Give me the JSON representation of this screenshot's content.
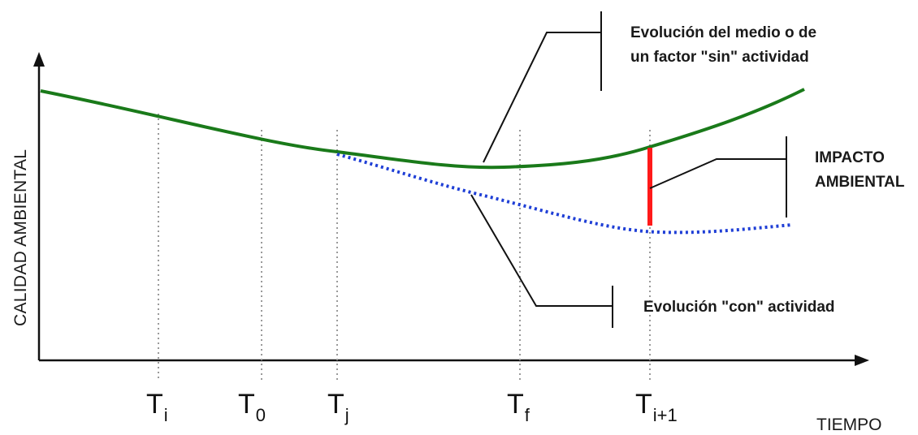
{
  "axes": {
    "ylabel": "CALIDAD AMBIENTAL",
    "xlabel": "TIEMPO"
  },
  "ticks": [
    {
      "base": "T",
      "sub": "i"
    },
    {
      "base": "T",
      "sub": "0"
    },
    {
      "base": "T",
      "sub": "j"
    },
    {
      "base": "T",
      "sub": "f"
    },
    {
      "base": "T",
      "sub": "i+1"
    }
  ],
  "labels": {
    "sin_line1": "Evolución del medio o de",
    "sin_line2": "un factor \"sin\" actividad",
    "impact_line1": "IMPACTO",
    "impact_line2": "AMBIENTAL",
    "con": "Evolución \"con\" actividad"
  },
  "colors": {
    "sin_curve": "#1a7a1a",
    "con_curve": "#1f3fd6",
    "impact": "#ff1a1a",
    "axis": "#111111",
    "guide": "#9a9a9a"
  }
}
